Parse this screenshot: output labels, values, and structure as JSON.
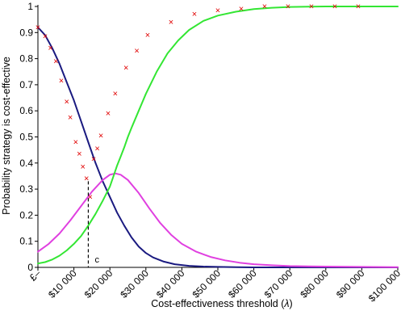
{
  "chart_data": {
    "type": "line",
    "title": "",
    "xlabel": "Cost-effectiveness threshold (",
    "xlabel_symbol": "λ",
    "xlabel_suffix": ")",
    "ylabel": "Probability strategy is cost-effective",
    "xlim": [
      0,
      100000
    ],
    "ylim": [
      0,
      1
    ],
    "y_ticks": [
      0,
      0.1,
      0.2,
      0.3,
      0.4,
      0.5,
      0.6,
      0.7,
      0.8,
      0.9,
      1
    ],
    "y_tick_labels": [
      "0",
      "0.1",
      "0.2",
      "0.3",
      "0.4",
      "0.5",
      "0.6",
      "0.7",
      "0.8",
      "0.9",
      "1"
    ],
    "x_ticks": [
      0,
      10000,
      20000,
      30000,
      40000,
      50000,
      60000,
      70000,
      80000,
      90000,
      100000
    ],
    "x_tick_labels": [
      "£–",
      "$10 000",
      "$20 000",
      "$30 000",
      "$40 000",
      "$50 000",
      "$60 000",
      "$70 000",
      "$80 000",
      "$90 000",
      "$100 000"
    ],
    "grid": false,
    "legend": "none",
    "series": [
      {
        "color": "#1a1a80",
        "x": [
          0,
          2000,
          4000,
          6000,
          8000,
          10000,
          12000,
          14000,
          16000,
          18000,
          20000,
          22000,
          24000,
          26000,
          28000,
          30000,
          32000,
          35000,
          38000,
          42000,
          46000,
          50000,
          55000,
          60000,
          70000,
          80000,
          90000,
          100000
        ],
        "values": [
          0.92,
          0.89,
          0.84,
          0.78,
          0.71,
          0.64,
          0.56,
          0.48,
          0.4,
          0.33,
          0.27,
          0.21,
          0.16,
          0.115,
          0.08,
          0.055,
          0.038,
          0.022,
          0.012,
          0.006,
          0.003,
          0.002,
          0.001,
          0.0,
          0.0,
          0.0,
          0.0,
          0.0
        ]
      },
      {
        "color": "#e040e0",
        "x": [
          0,
          3000,
          6000,
          9000,
          12000,
          15000,
          18000,
          20000,
          21500,
          23000,
          25000,
          28000,
          31000,
          34000,
          37000,
          40000,
          44000,
          48000,
          52000,
          56000,
          60000,
          65000,
          70000,
          80000,
          90000,
          100000
        ],
        "values": [
          0.06,
          0.09,
          0.13,
          0.18,
          0.235,
          0.29,
          0.335,
          0.355,
          0.36,
          0.355,
          0.335,
          0.285,
          0.225,
          0.17,
          0.125,
          0.09,
          0.06,
          0.04,
          0.027,
          0.018,
          0.012,
          0.008,
          0.005,
          0.003,
          0.002,
          0.001
        ]
      },
      {
        "color": "#33e633",
        "x": [
          0,
          2000,
          4000,
          6000,
          8000,
          10000,
          12000,
          14000,
          16000,
          18000,
          20000,
          21000,
          22000,
          23000,
          24000,
          25000,
          26000,
          28000,
          30000,
          33000,
          36000,
          39000,
          42000,
          46000,
          50000,
          55000,
          60000,
          65000,
          70000,
          75000,
          80000,
          85000,
          90000,
          95000,
          100000
        ],
        "values": [
          0.015,
          0.02,
          0.03,
          0.045,
          0.065,
          0.09,
          0.12,
          0.16,
          0.205,
          0.255,
          0.31,
          0.35,
          0.39,
          0.425,
          0.46,
          0.5,
          0.535,
          0.6,
          0.665,
          0.75,
          0.82,
          0.87,
          0.91,
          0.945,
          0.965,
          0.98,
          0.99,
          0.995,
          0.998,
          0.999,
          1.0,
          1.0,
          1.0,
          1.0,
          1.0
        ]
      }
    ],
    "markers": {
      "symbol": "×",
      "color": "#e00000",
      "points": [
        [
          0,
          0.92
        ],
        [
          2000,
          0.885
        ],
        [
          3500,
          0.84
        ],
        [
          5000,
          0.79
        ],
        [
          6500,
          0.715
        ],
        [
          8000,
          0.635
        ],
        [
          9000,
          0.575
        ],
        [
          10500,
          0.48
        ],
        [
          11500,
          0.435
        ],
        [
          12500,
          0.385
        ],
        [
          13500,
          0.34
        ],
        [
          14500,
          0.27
        ],
        [
          15500,
          0.415
        ],
        [
          16500,
          0.455
        ],
        [
          17500,
          0.505
        ],
        [
          19500,
          0.59
        ],
        [
          21500,
          0.665
        ],
        [
          24500,
          0.765
        ],
        [
          27500,
          0.83
        ],
        [
          30500,
          0.89
        ],
        [
          37000,
          0.94
        ],
        [
          43500,
          0.97
        ],
        [
          50000,
          0.985
        ],
        [
          56500,
          0.99
        ],
        [
          63000,
          1.0
        ],
        [
          69500,
          1.0
        ],
        [
          76000,
          1.0
        ],
        [
          82500,
          1.0
        ],
        [
          89000,
          1.0
        ]
      ]
    },
    "annotations": [
      {
        "text": "c",
        "x": 14000,
        "y": 0.33
      }
    ]
  }
}
